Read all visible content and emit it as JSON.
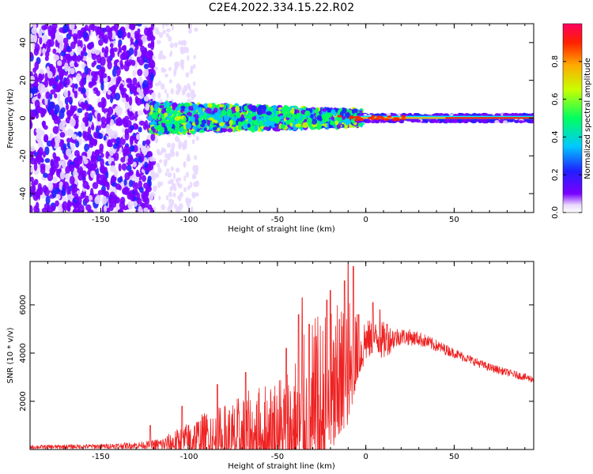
{
  "figure": {
    "title": "C2E4.2022.334.15.22.R02"
  },
  "colors": {
    "snr_line": "#ee2222",
    "signal_low": "#7a00ff",
    "signal_high": "#ff0030"
  },
  "chart_data": [
    {
      "type": "heatmap",
      "xlabel": "Height of straight line (km)",
      "ylabel": "Frequency (Hz)",
      "xlim": [
        -190,
        95
      ],
      "ylim": [
        -50,
        50
      ],
      "x_ticks": [
        -150,
        -100,
        -50,
        0,
        50
      ],
      "y_ticks": [
        -40,
        -20,
        0,
        20,
        40
      ],
      "colorbar": {
        "label": "Normalized spectral amplitude",
        "range": [
          0.0,
          1.0
        ],
        "ticks": [
          "0.0",
          "0.2",
          "0.4",
          "0.6",
          "0.8"
        ]
      },
      "grid": false
    },
    {
      "type": "line",
      "xlabel": "Height of straight line (km)",
      "ylabel": "SNR (10 * v/v)",
      "xlim": [
        -190,
        95
      ],
      "ylim": [
        0,
        7800
      ],
      "x_ticks": [
        -150,
        -100,
        -50,
        0,
        50
      ],
      "y_ticks": [
        2000,
        4000,
        6000
      ],
      "envelope": {
        "x": [
          -190,
          -150,
          -125,
          -115,
          -100,
          -90,
          -80,
          -70,
          -60,
          -50,
          -40,
          -35,
          -30,
          -25,
          -20,
          -15,
          -10,
          -8,
          -5,
          0,
          5,
          10,
          15,
          20,
          30,
          40,
          50,
          60,
          70,
          80,
          95
        ],
        "base": [
          100,
          130,
          180,
          200,
          350,
          500,
          700,
          850,
          1000,
          1300,
          1600,
          1800,
          2000,
          2300,
          2700,
          3100,
          3700,
          3900,
          4200,
          4500,
          4600,
          4500,
          4600,
          4700,
          4600,
          4300,
          4000,
          3700,
          3400,
          3200,
          2900
        ],
        "spread": [
          80,
          100,
          150,
          300,
          800,
          1100,
          1500,
          1700,
          2000,
          2300,
          2800,
          3500,
          4000,
          4200,
          3800,
          3500,
          3500,
          2800,
          1800,
          900,
          700,
          800,
          500,
          350,
          300,
          250,
          200,
          180,
          170,
          150,
          150
        ]
      },
      "peaks": [
        {
          "x": -122,
          "y": 1000
        },
        {
          "x": -104,
          "y": 1800
        },
        {
          "x": -84,
          "y": 2700
        },
        {
          "x": -68,
          "y": 3200
        },
        {
          "x": -45,
          "y": 4200
        },
        {
          "x": -38,
          "y": 5600
        },
        {
          "x": -36,
          "y": 6300
        },
        {
          "x": -32,
          "y": 5200
        },
        {
          "x": -28,
          "y": 4700
        },
        {
          "x": -22,
          "y": 6200
        },
        {
          "x": -20,
          "y": 6600
        },
        {
          "x": -15,
          "y": 5400
        },
        {
          "x": -12,
          "y": 7000
        },
        {
          "x": -10,
          "y": 7700
        },
        {
          "x": -7,
          "y": 7600
        },
        {
          "x": -4,
          "y": 5600
        },
        {
          "x": 4,
          "y": 6100
        },
        {
          "x": 8,
          "y": 5800
        },
        {
          "x": 12,
          "y": 5200
        }
      ],
      "grid": false
    }
  ]
}
